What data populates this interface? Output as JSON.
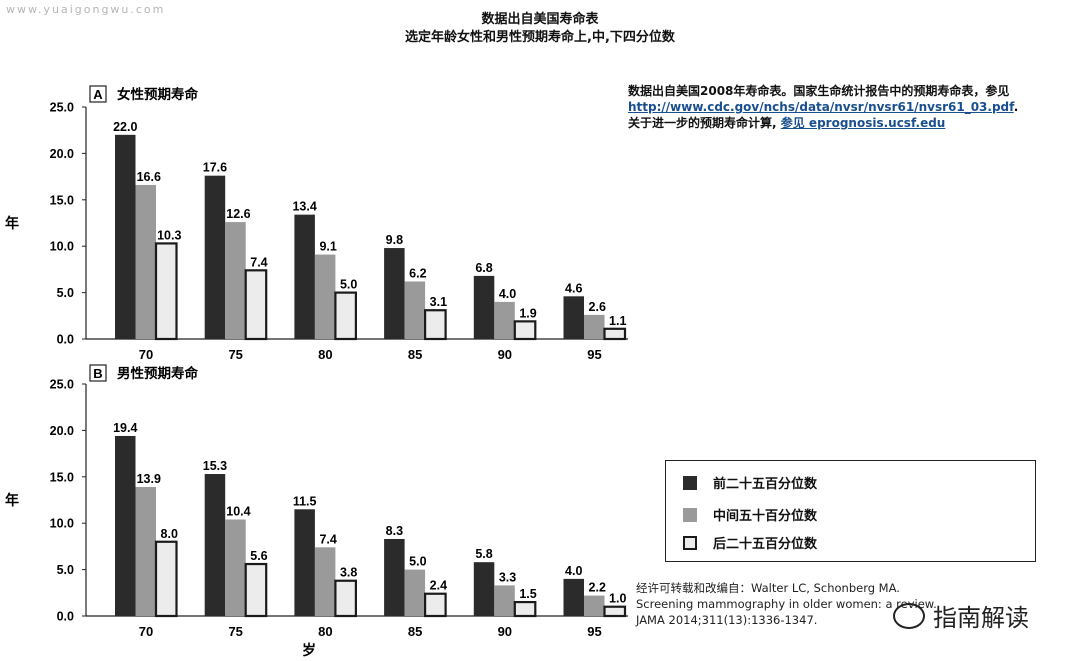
{
  "watermark": "www.yuaigongwu.com",
  "title_line1": "数据出自美国寿命表",
  "title_line2": "选定年龄女性和男性预期寿命上,中,下四分位数",
  "note": {
    "line1": "数据出自美国2008年寿命表。国家生命统计报告中的预期寿命表，参见",
    "link1": "http://www.cdc.gov/nchs/data/nvsr/nvsr61/nvsr61_03.pdf",
    "link1_suffix": ".",
    "line3_prefix": "关于进一步的预期寿命计算,",
    "link2": "参见 eprognosis.ucsf.edu"
  },
  "legend": {
    "items": [
      {
        "label": "前二十五百分位数"
      },
      {
        "label": "中间五十百分位数"
      },
      {
        "label": "后二十五百分位数"
      }
    ]
  },
  "source": {
    "line1": "经许可转载和改编自：Walter LC, Schonberg MA.",
    "line2": "Screening mammography in older women: a review.",
    "line3": "JAMA 2014;311(13):1336-1347."
  },
  "logo": "指南解读",
  "colors": {
    "top": "#2b2b2b",
    "mid": "#9a9a9a",
    "bottom_fill": "#ececec",
    "bottom_stroke": "#1a1a1a",
    "link": "#1a4f8f"
  },
  "chart_data": [
    {
      "type": "bar",
      "panel_letter": "A",
      "title": "女性预期寿命",
      "ylabel": "年",
      "xlabel": "",
      "categories": [
        "70",
        "75",
        "80",
        "85",
        "90",
        "95"
      ],
      "ylim": [
        0,
        25
      ],
      "yticks": [
        "0.0",
        "5.0",
        "10.0",
        "15.0",
        "20.0",
        "25.0"
      ],
      "series": [
        {
          "name": "前二十五百分位数",
          "values": [
            22.0,
            17.6,
            13.4,
            9.8,
            6.8,
            4.6
          ],
          "labels": [
            "22.0",
            "17.6",
            "13.4",
            "9.8",
            "6.8",
            "4.6"
          ]
        },
        {
          "name": "中间五十百分位数",
          "values": [
            16.6,
            12.6,
            9.1,
            6.2,
            4.0,
            2.6
          ],
          "labels": [
            "16.6",
            "12.6",
            "9.1",
            "6.2",
            "4.0",
            "2.6"
          ]
        },
        {
          "name": "后二十五百分位数",
          "values": [
            10.3,
            7.4,
            5.0,
            3.1,
            1.9,
            1.1
          ],
          "labels": [
            "10.3",
            "7.4",
            "5.0",
            "3.1",
            "1.9",
            "1.1"
          ]
        }
      ]
    },
    {
      "type": "bar",
      "panel_letter": "B",
      "title": "男性预期寿命",
      "ylabel": "年",
      "xlabel": "岁",
      "categories": [
        "70",
        "75",
        "80",
        "85",
        "90",
        "95"
      ],
      "ylim": [
        0,
        25
      ],
      "yticks": [
        "0.0",
        "5.0",
        "10.0",
        "15.0",
        "20.0",
        "25.0"
      ],
      "series": [
        {
          "name": "前二十五百分位数",
          "values": [
            19.4,
            15.3,
            11.5,
            8.3,
            5.8,
            4.0
          ],
          "labels": [
            "19.4",
            "15.3",
            "11.5",
            "8.3",
            "5.8",
            "4.0"
          ]
        },
        {
          "name": "中间五十百分位数",
          "values": [
            13.9,
            10.4,
            7.4,
            5.0,
            3.3,
            2.2
          ],
          "labels": [
            "13.9",
            "10.4",
            "7.4",
            "5.0",
            "3.3",
            "2.2"
          ]
        },
        {
          "name": "后二十五百分位数",
          "values": [
            8.0,
            5.6,
            3.8,
            2.4,
            1.5,
            1.0
          ],
          "labels": [
            "8.0",
            "5.6",
            "3.8",
            "2.4",
            "1.5",
            "1.0"
          ]
        }
      ]
    }
  ]
}
